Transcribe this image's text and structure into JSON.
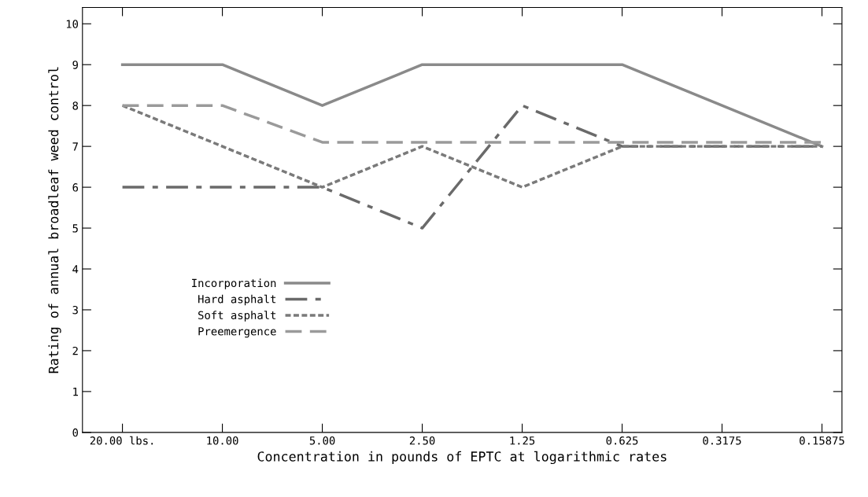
{
  "chart_data": {
    "type": "line",
    "xlabel": "Concentration in pounds of EPTC at logarithmic rates",
    "ylabel": "Rating of annual broadleaf weed control",
    "categories": [
      "20.00 lbs.",
      "10.00",
      "5.00",
      "2.50",
      "1.25",
      "0.625",
      "0.3175",
      "0.15875"
    ],
    "series": [
      {
        "name": "Incorporation",
        "color": "#8a8a8a",
        "line_style": "solid",
        "values": [
          9,
          9,
          8,
          9,
          9,
          9,
          8,
          7
        ]
      },
      {
        "name": "Hard asphalt",
        "color": "#6a6a6a",
        "line_style": "dashdot",
        "values": [
          6,
          6,
          6,
          5,
          8,
          7,
          7,
          7
        ]
      },
      {
        "name": "Soft asphalt",
        "color": "#7a7a7a",
        "line_style": "dotted",
        "values": [
          8,
          7,
          6,
          7,
          6,
          7,
          7,
          7
        ]
      },
      {
        "name": "Preemergence",
        "color": "#9a9a9a",
        "line_style": "dashed",
        "values": [
          8,
          8,
          7.1,
          7.1,
          7.1,
          7.1,
          7.1,
          7.1
        ]
      }
    ],
    "ylim": [
      0,
      10.4
    ],
    "yticks": [
      0,
      1,
      2,
      3,
      4,
      5,
      6,
      7,
      8,
      9,
      10
    ],
    "grid": false,
    "legend": "bottom left",
    "marker": "none"
  }
}
